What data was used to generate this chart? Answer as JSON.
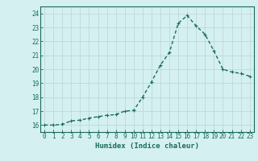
{
  "x": [
    0,
    1,
    2,
    3,
    4,
    5,
    6,
    7,
    8,
    9,
    10,
    11,
    12,
    13,
    14,
    15,
    16,
    17,
    18,
    19,
    20,
    21,
    22,
    23
  ],
  "y": [
    16.0,
    16.0,
    16.05,
    16.3,
    16.35,
    16.5,
    16.6,
    16.7,
    16.75,
    17.0,
    17.05,
    18.0,
    19.1,
    20.3,
    21.2,
    23.3,
    23.85,
    23.1,
    22.5,
    21.3,
    20.0,
    19.8,
    19.7,
    19.5
  ],
  "xlabel": "Humidex (Indice chaleur)",
  "ylim": [
    15.5,
    24.5
  ],
  "xlim": [
    -0.5,
    23.5
  ],
  "yticks": [
    16,
    17,
    18,
    19,
    20,
    21,
    22,
    23,
    24
  ],
  "xticks": [
    0,
    1,
    2,
    3,
    4,
    5,
    6,
    7,
    8,
    9,
    10,
    11,
    12,
    13,
    14,
    15,
    16,
    17,
    18,
    19,
    20,
    21,
    22,
    23
  ],
  "line_color": "#1a6b5a",
  "marker_color": "#1a6b5a",
  "bg_color": "#d4f0f0",
  "grid_color": "#c0d8d8",
  "axis_color": "#1a6b5a",
  "xlabel_fontsize": 6.5,
  "tick_fontsize": 5.5,
  "line_width": 1.0,
  "marker_size": 2.2
}
